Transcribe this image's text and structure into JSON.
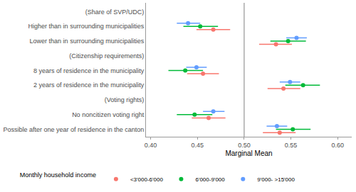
{
  "chart_data": {
    "type": "dot_whisker",
    "orientation": "horizontal",
    "x_label": "Marginal Mean",
    "legend_title": "Monthly household income",
    "legend": "bottom",
    "grid": false,
    "reference_line": 0.5,
    "categories": [
      "(Share of SVP/UDC)",
      "Higher than in surrounding municipalities",
      "Lower than in surrounding municipalities",
      "(Citizenship requirements)",
      "8 years of residence in the municipality",
      "2 years of residence in the municipality",
      "(Voting rights)",
      "No noncitizen voting right",
      "Possible after one year of residence in the canton"
    ],
    "xlim": [
      0.395,
      0.615
    ],
    "xticks": [
      {
        "value": 0.4,
        "label": "0.40"
      },
      0.45,
      {
        "value": 0.5,
        "label": "0.50"
      },
      0.55,
      {
        "value": 0.6,
        "label": "0.60"
      }
    ],
    "series": [
      {
        "name": "<3'000-6'000",
        "color": "#F8766D",
        "marker": "circle",
        "values": [
          null,
          0.467,
          0.534,
          null,
          0.456,
          0.542,
          null,
          0.462,
          0.538
        ],
        "lower": [
          null,
          0.449,
          0.516,
          null,
          0.439,
          0.525,
          null,
          0.444,
          0.52
        ],
        "upper": [
          null,
          0.485,
          0.551,
          null,
          0.473,
          0.56,
          null,
          0.48,
          0.555
        ]
      },
      {
        "name": "6'000-9'000",
        "color": "#00BA38",
        "marker": "circle",
        "values": [
          null,
          0.453,
          0.547,
          null,
          0.437,
          0.563,
          null,
          0.447,
          0.552
        ],
        "lower": [
          null,
          0.435,
          0.528,
          null,
          0.419,
          0.544,
          null,
          0.428,
          0.534
        ],
        "upper": [
          null,
          0.472,
          0.566,
          null,
          0.456,
          0.581,
          null,
          0.466,
          0.571
        ]
      },
      {
        "name": "9'000- >15'000",
        "color": "#619CFF",
        "marker": "circle",
        "values": [
          null,
          0.44,
          0.556,
          null,
          0.449,
          0.549,
          null,
          0.467,
          0.535
        ],
        "lower": [
          null,
          0.428,
          0.545,
          null,
          0.438,
          0.538,
          null,
          0.456,
          0.524
        ],
        "upper": [
          null,
          0.453,
          0.567,
          null,
          0.46,
          0.56,
          null,
          0.479,
          0.546
        ]
      }
    ]
  }
}
